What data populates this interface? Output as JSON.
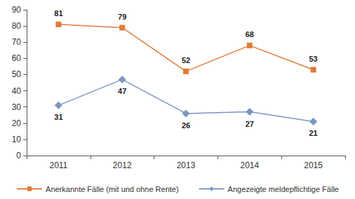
{
  "chart_data": {
    "type": "line",
    "categories": [
      "2011",
      "2012",
      "2013",
      "2014",
      "2015"
    ],
    "series": [
      {
        "name": "Anerkannte Fälle (mit und ohne Rente)",
        "color": "#e07b39",
        "marker": "square",
        "values": [
          81,
          79,
          52,
          68,
          53
        ]
      },
      {
        "name": "Angezeigte meldepflichtige Fälle",
        "color": "#7b96c0",
        "marker": "diamond",
        "values": [
          31,
          47,
          26,
          27,
          21
        ]
      }
    ],
    "ylim": [
      0,
      90
    ],
    "yticks": [
      0,
      10,
      20,
      30,
      40,
      50,
      60,
      70,
      80,
      90
    ],
    "grid": false,
    "legend": "bottom",
    "data_labels": true
  }
}
